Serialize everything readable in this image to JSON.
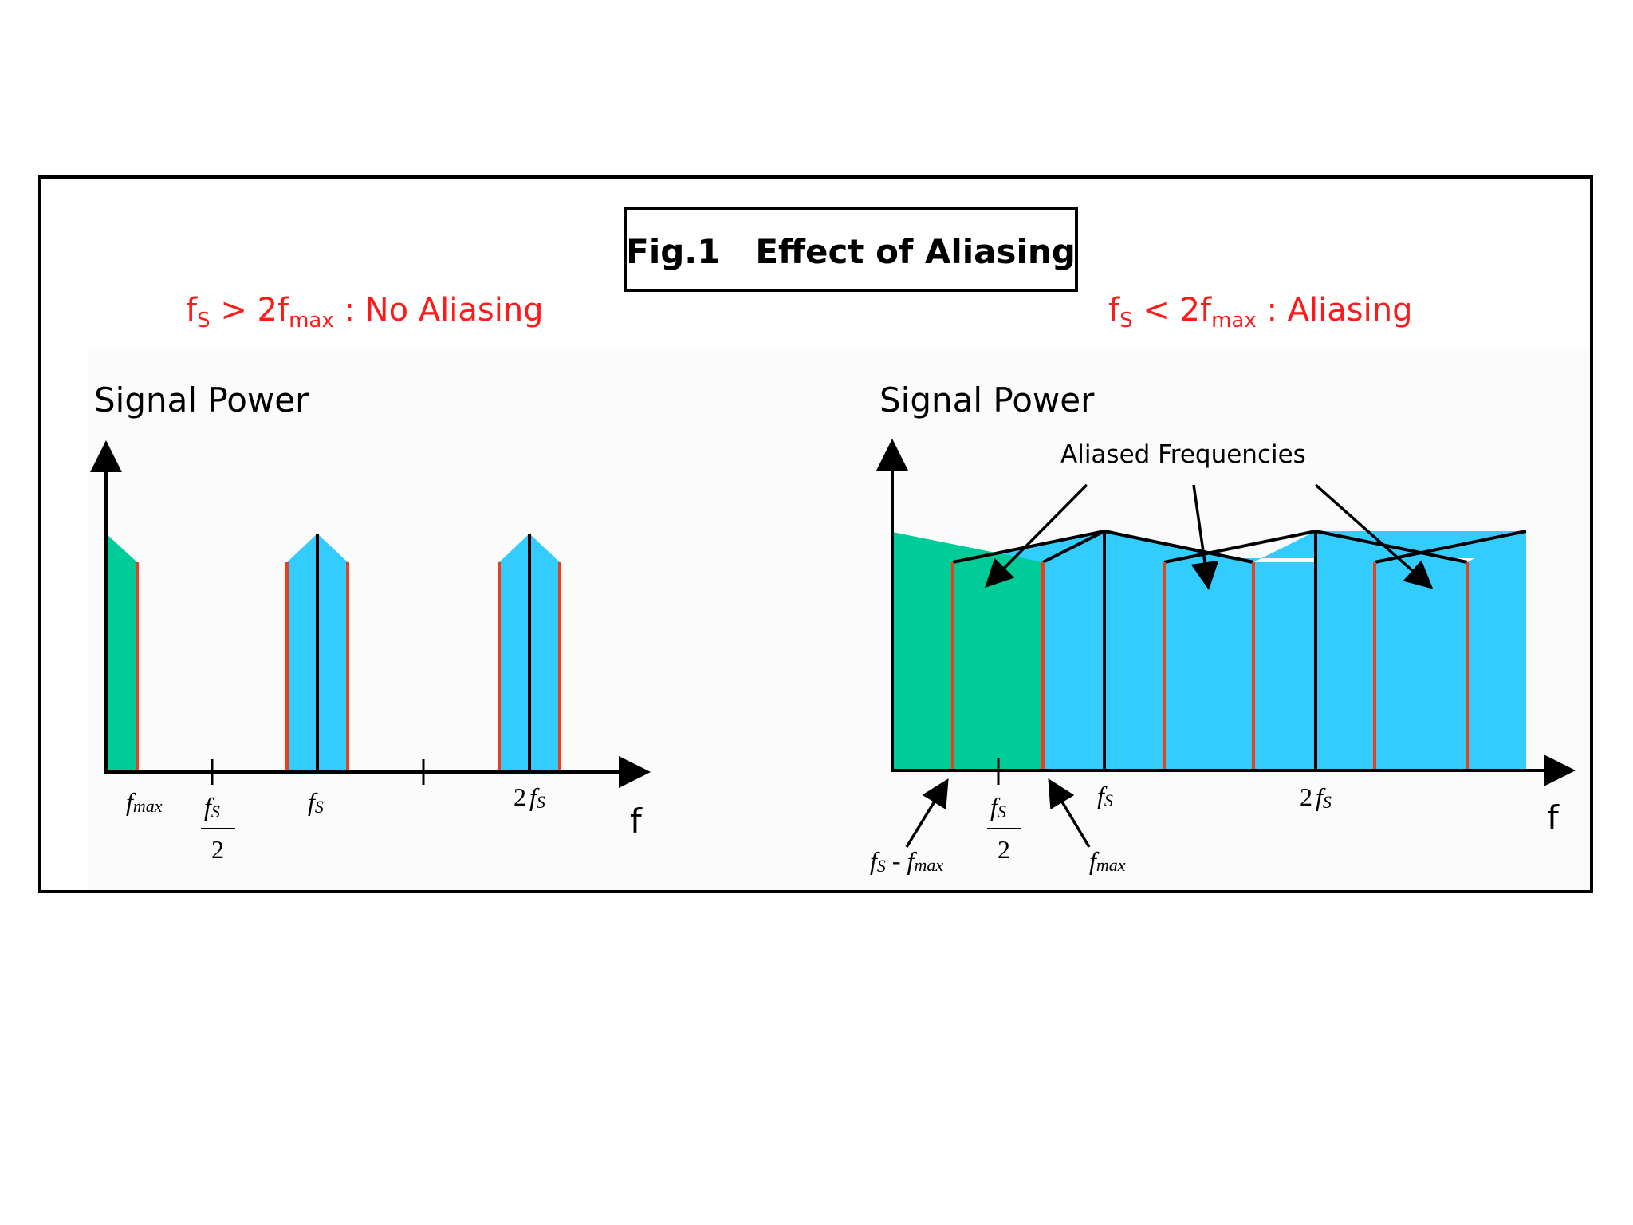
{
  "figure": {
    "title": "Fig.1   Effect of Aliasing",
    "colors": {
      "frame": "#000000",
      "panel_bg": "#fbfbfb",
      "green": "#00cc99",
      "blue": "#33ccff",
      "red_line": "#e8401a",
      "condition_text": "#ff1a1a"
    }
  },
  "left_panel": {
    "condition": {
      "main": "f",
      "sub1": "S",
      "mid": " > 2f",
      "sub2": "max",
      "tail": " : No Aliasing"
    },
    "y_axis_label": "Signal Power",
    "x_axis_label": "f",
    "ticks": {
      "fmax": {
        "main": "f",
        "sub": "max"
      },
      "fs_half": {
        "num_main": "f",
        "num_sub": "S",
        "den": "2"
      },
      "fs": {
        "main": "f",
        "sub": "S"
      },
      "two_fs": {
        "coef": "2",
        "main": "f",
        "sub": "S"
      }
    }
  },
  "right_panel": {
    "condition": {
      "main": "f",
      "sub1": "S",
      "mid": " < 2f",
      "sub2": "max",
      "tail": " : Aliasing"
    },
    "y_axis_label": "Signal Power",
    "x_axis_label": "f",
    "annotation": "Aliased Frequencies",
    "ticks": {
      "fs_minus_fmax": {
        "main1": "f",
        "sub1": "S",
        "op": " - ",
        "main2": "f",
        "sub2": "max"
      },
      "fs_half": {
        "num_main": "f",
        "num_sub": "S",
        "den": "2"
      },
      "fmax": {
        "main": "f",
        "sub": "max"
      },
      "fs": {
        "main": "f",
        "sub": "S"
      },
      "two_fs": {
        "coef": "2",
        "main": "f",
        "sub": "S"
      }
    }
  }
}
